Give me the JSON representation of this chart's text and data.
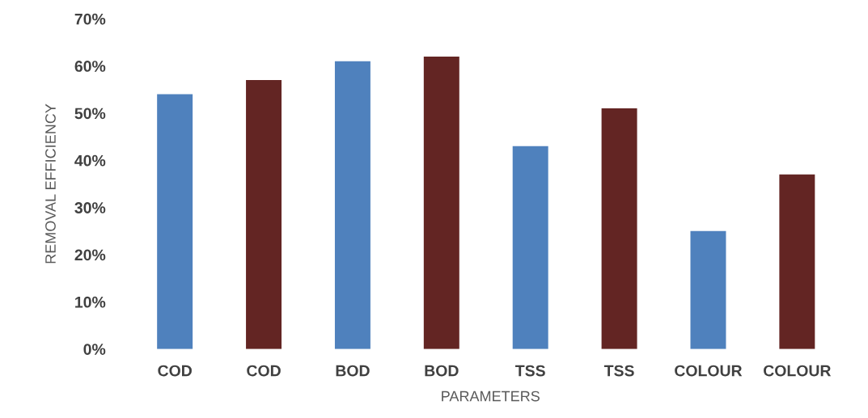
{
  "chart_data": {
    "type": "bar",
    "xlabel": "PARAMETERS",
    "ylabel": "REMOVAL EFFICIENCY",
    "categories": [
      "COD",
      "COD",
      "BOD",
      "BOD",
      "TSS",
      "TSS",
      "COLOUR",
      "COLOUR"
    ],
    "values": [
      54,
      57,
      61,
      62,
      43,
      51,
      25,
      37
    ],
    "colors": [
      "#4f81bd",
      "#632523",
      "#4f81bd",
      "#632523",
      "#4f81bd",
      "#632523",
      "#4f81bd",
      "#632523"
    ],
    "ylim": [
      0,
      70
    ],
    "yticks": [
      {
        "value": 0,
        "label": "0%"
      },
      {
        "value": 10,
        "label": "10%"
      },
      {
        "value": 20,
        "label": "20%"
      },
      {
        "value": 30,
        "label": "30%"
      },
      {
        "value": 40,
        "label": "40%"
      },
      {
        "value": 50,
        "label": "50%"
      },
      {
        "value": 60,
        "label": "60%"
      },
      {
        "value": 70,
        "label": "70%"
      }
    ],
    "grid": false
  }
}
